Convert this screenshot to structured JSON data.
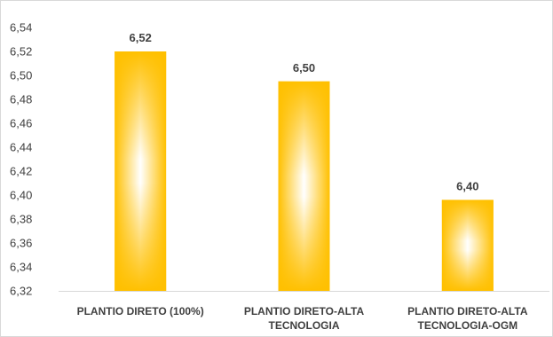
{
  "chart_data": {
    "type": "bar",
    "title": "",
    "xlabel": "",
    "ylabel": "",
    "categories": [
      [
        "PLANTIO DIRETO (100%)"
      ],
      [
        "PLANTIO DIRETO-ALTA",
        "TECNOLOGIA"
      ],
      [
        "PLANTIO DIRETO-ALTA",
        "TECNOLOGIA-OGM"
      ]
    ],
    "values": [
      6.52,
      6.495,
      6.396
    ],
    "data_labels": [
      "6,52",
      "6,50",
      "6,40"
    ],
    "ylim": [
      6.32,
      6.54
    ],
    "y_ticks": [
      "6,32",
      "6,34",
      "6,36",
      "6,38",
      "6,40",
      "6,42",
      "6,44",
      "6,46",
      "6,48",
      "6,50",
      "6,52",
      "6,54"
    ],
    "grid": false,
    "legend": "none",
    "bar_color": "#FFC000",
    "bar_highlight_color": "#FFFFFF"
  }
}
